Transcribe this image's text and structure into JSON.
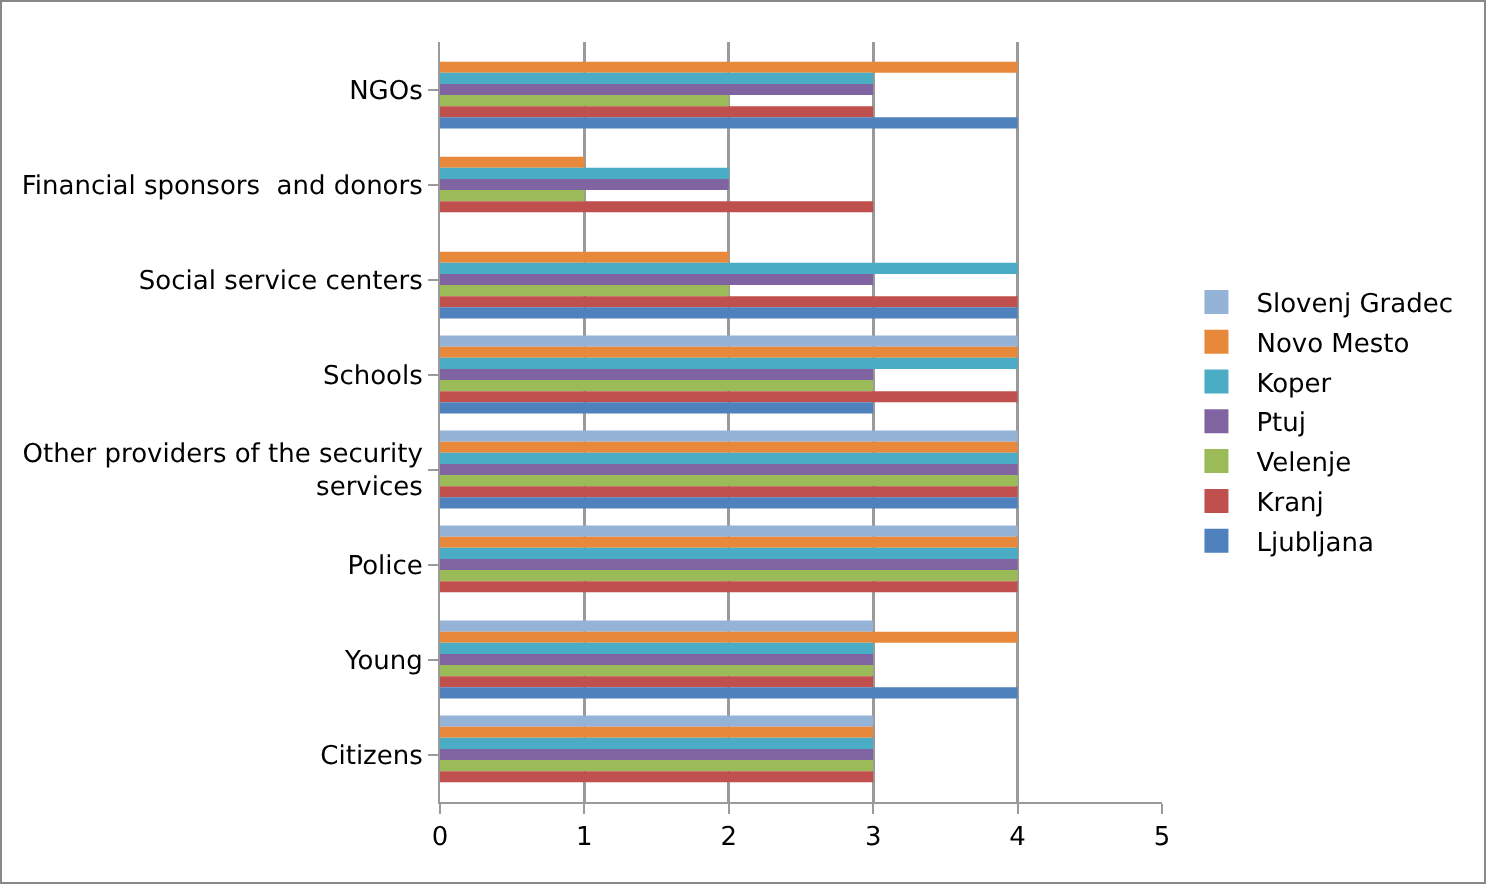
{
  "chart_data": {
    "type": "bar",
    "orientation": "horizontal",
    "categories": [
      "NGOs",
      "Financial sponsors  and donors",
      "Social service centers",
      "Schools",
      "Other providers of the security services",
      "Police",
      "Young",
      "Citizens"
    ],
    "series": [
      {
        "name": "Slovenj Gradec",
        "color": "#95b3d7",
        "values": [
          0,
          0,
          0,
          4,
          4,
          4,
          3,
          3
        ]
      },
      {
        "name": "Novo Mesto",
        "color": "#e8883a",
        "values": [
          4,
          1,
          2,
          4,
          4,
          4,
          4,
          3
        ]
      },
      {
        "name": "Koper",
        "color": "#4bacc6",
        "values": [
          3,
          2,
          4,
          4,
          4,
          4,
          3,
          3
        ]
      },
      {
        "name": "Ptuj",
        "color": "#8064a2",
        "values": [
          3,
          2,
          3,
          3,
          4,
          4,
          3,
          3
        ]
      },
      {
        "name": "Velenje",
        "color": "#9bbb59",
        "values": [
          2,
          1,
          2,
          3,
          4,
          4,
          3,
          3
        ]
      },
      {
        "name": "Kranj",
        "color": "#c0504d",
        "values": [
          3,
          3,
          4,
          4,
          4,
          4,
          3,
          3
        ]
      },
      {
        "name": "Ljubljana",
        "color": "#4f81bd",
        "values": [
          4,
          0,
          4,
          3,
          4,
          0,
          4,
          0
        ]
      }
    ],
    "xlim": [
      0,
      5
    ],
    "xticks": [
      0,
      1,
      2,
      3,
      4,
      5
    ],
    "grid": "x",
    "legend": "right"
  }
}
